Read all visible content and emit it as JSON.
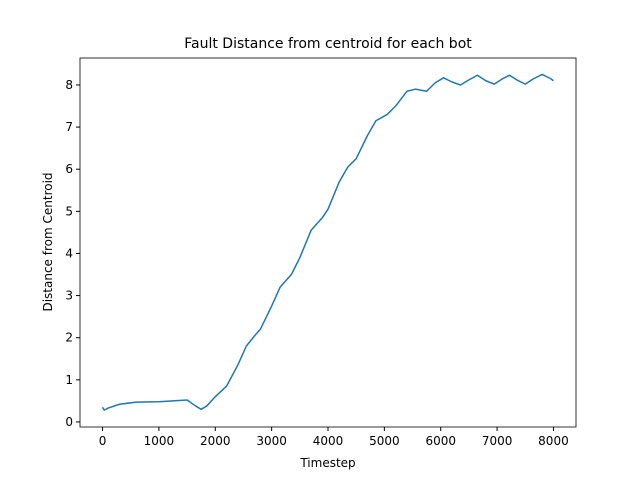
{
  "chart_data": {
    "type": "line",
    "title": "Fault Distance from centroid for each bot",
    "x_label": "Timestep",
    "y_label": "Distance from Centroid",
    "series": [
      {
        "color": "#1f77b4",
        "x": [
          0,
          30,
          100,
          300,
          600,
          1000,
          1500,
          1650,
          1750,
          1850,
          2000,
          2200,
          2400,
          2550,
          2700,
          2800,
          3000,
          3150,
          3350,
          3500,
          3700,
          3900,
          4000,
          4200,
          4350,
          4500,
          4700,
          4850,
          5050,
          5200,
          5400,
          5550,
          5750,
          5900,
          6050,
          6200,
          6350,
          6500,
          6650,
          6800,
          6950,
          7100,
          7220,
          7350,
          7500,
          7650,
          7800,
          7950,
          8000
        ],
        "values": [
          0.35,
          0.28,
          0.33,
          0.42,
          0.47,
          0.48,
          0.52,
          0.38,
          0.3,
          0.38,
          0.6,
          0.85,
          1.35,
          1.8,
          2.05,
          2.2,
          2.75,
          3.2,
          3.5,
          3.9,
          4.55,
          4.85,
          5.05,
          5.7,
          6.05,
          6.25,
          6.8,
          7.15,
          7.3,
          7.5,
          7.85,
          7.9,
          7.85,
          8.05,
          8.17,
          8.07,
          8.0,
          8.12,
          8.23,
          8.1,
          8.02,
          8.15,
          8.23,
          8.12,
          8.02,
          8.15,
          8.25,
          8.15,
          8.1
        ]
      }
    ],
    "xlim": [
      -400,
      8400
    ],
    "ylim": [
      -0.12,
      8.64
    ],
    "xticks": [
      0,
      1000,
      2000,
      3000,
      4000,
      5000,
      6000,
      7000,
      8000
    ],
    "yticks": [
      0,
      1,
      2,
      3,
      4,
      5,
      6,
      7,
      8
    ]
  }
}
